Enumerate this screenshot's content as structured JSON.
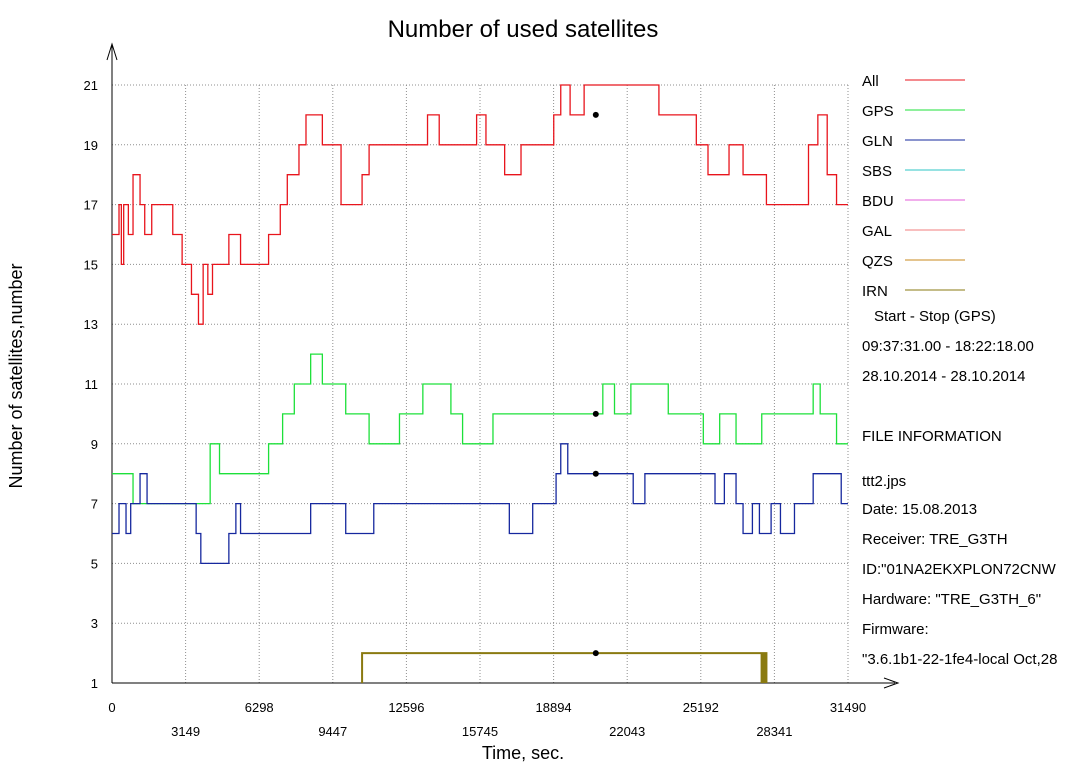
{
  "chart_data": {
    "type": "line",
    "title": "Number of used satellites",
    "xlabel": "Time, sec.",
    "ylabel": "Number of satellites,number",
    "xlim": [
      0,
      31490
    ],
    "ylim": [
      1,
      21
    ],
    "x_ticks_top_row": [
      "0",
      "6298",
      "12596",
      "18894",
      "25192",
      "31490"
    ],
    "x_ticks_bottom_row": [
      "3149",
      "9447",
      "15745",
      "22043",
      "28341"
    ],
    "y_ticks": [
      "1",
      "3",
      "5",
      "7",
      "9",
      "11",
      "13",
      "15",
      "17",
      "19",
      "21"
    ],
    "grid": true,
    "legend_position": "right",
    "series": [
      {
        "name": "All",
        "color": "#e8141c",
        "points": [
          [
            0,
            16
          ],
          [
            300,
            17
          ],
          [
            400,
            15
          ],
          [
            500,
            17
          ],
          [
            700,
            16
          ],
          [
            900,
            18
          ],
          [
            1200,
            17
          ],
          [
            1400,
            16
          ],
          [
            1700,
            17
          ],
          [
            2500,
            17
          ],
          [
            2600,
            16
          ],
          [
            3000,
            15
          ],
          [
            3400,
            14
          ],
          [
            3700,
            13
          ],
          [
            3900,
            15
          ],
          [
            4100,
            14
          ],
          [
            4300,
            15
          ],
          [
            4700,
            15
          ],
          [
            5000,
            16
          ],
          [
            5500,
            15
          ],
          [
            6000,
            15
          ],
          [
            6300,
            15
          ],
          [
            6700,
            16
          ],
          [
            7200,
            17
          ],
          [
            7500,
            18
          ],
          [
            8000,
            19
          ],
          [
            8300,
            20
          ],
          [
            8800,
            20
          ],
          [
            9000,
            19
          ],
          [
            9500,
            19
          ],
          [
            9800,
            17
          ],
          [
            10400,
            17
          ],
          [
            10700,
            18
          ],
          [
            11000,
            19
          ],
          [
            12000,
            19
          ],
          [
            13000,
            19
          ],
          [
            13500,
            20
          ],
          [
            14000,
            19
          ],
          [
            15000,
            19
          ],
          [
            15600,
            20
          ],
          [
            16000,
            19
          ],
          [
            16800,
            18
          ],
          [
            17200,
            18
          ],
          [
            17500,
            19
          ],
          [
            18500,
            19
          ],
          [
            18900,
            20
          ],
          [
            19200,
            21
          ],
          [
            19600,
            20
          ],
          [
            20200,
            21
          ],
          [
            21300,
            21
          ],
          [
            21700,
            21
          ],
          [
            22500,
            21
          ],
          [
            23400,
            20
          ],
          [
            24500,
            20
          ],
          [
            25000,
            19
          ],
          [
            25500,
            18
          ],
          [
            26400,
            19
          ],
          [
            27000,
            18
          ],
          [
            28000,
            17
          ],
          [
            29000,
            17
          ],
          [
            29800,
            19
          ],
          [
            30200,
            20
          ],
          [
            30600,
            18
          ],
          [
            31000,
            17
          ],
          [
            31490,
            17
          ]
        ]
      },
      {
        "name": "GPS",
        "color": "#1de03a",
        "points": [
          [
            0,
            8
          ],
          [
            600,
            8
          ],
          [
            900,
            7
          ],
          [
            1500,
            7
          ],
          [
            2500,
            7
          ],
          [
            3900,
            7
          ],
          [
            4200,
            9
          ],
          [
            4600,
            8
          ],
          [
            5600,
            8
          ],
          [
            6700,
            9
          ],
          [
            7300,
            10
          ],
          [
            7800,
            11
          ],
          [
            8300,
            11
          ],
          [
            8500,
            12
          ],
          [
            9000,
            11
          ],
          [
            9500,
            11
          ],
          [
            10000,
            10
          ],
          [
            10600,
            10
          ],
          [
            11000,
            9
          ],
          [
            12000,
            9
          ],
          [
            12300,
            10
          ],
          [
            12800,
            10
          ],
          [
            13300,
            11
          ],
          [
            14000,
            11
          ],
          [
            14500,
            10
          ],
          [
            15000,
            9
          ],
          [
            15800,
            9
          ],
          [
            16300,
            10
          ],
          [
            18800,
            10
          ],
          [
            19500,
            10
          ],
          [
            20700,
            10
          ],
          [
            21000,
            11
          ],
          [
            21500,
            10
          ],
          [
            22200,
            11
          ],
          [
            23000,
            11
          ],
          [
            23800,
            10
          ],
          [
            24800,
            10
          ],
          [
            25300,
            9
          ],
          [
            26000,
            10
          ],
          [
            26700,
            9
          ],
          [
            27400,
            9
          ],
          [
            27800,
            10
          ],
          [
            28500,
            10
          ],
          [
            29000,
            10
          ],
          [
            29500,
            10
          ],
          [
            30000,
            11
          ],
          [
            30300,
            10
          ],
          [
            30800,
            10
          ],
          [
            31000,
            9
          ],
          [
            31490,
            9
          ]
        ]
      },
      {
        "name": "GLN",
        "color": "#16289e",
        "points": [
          [
            0,
            6
          ],
          [
            300,
            7
          ],
          [
            600,
            6
          ],
          [
            800,
            7
          ],
          [
            1200,
            8
          ],
          [
            1500,
            7
          ],
          [
            2500,
            7
          ],
          [
            3500,
            7
          ],
          [
            3600,
            6
          ],
          [
            3800,
            5
          ],
          [
            4800,
            5
          ],
          [
            5000,
            6
          ],
          [
            5300,
            7
          ],
          [
            5500,
            6
          ],
          [
            8300,
            6
          ],
          [
            8500,
            7
          ],
          [
            9200,
            7
          ],
          [
            9500,
            7
          ],
          [
            10000,
            6
          ],
          [
            10800,
            6
          ],
          [
            11200,
            7
          ],
          [
            13000,
            7
          ],
          [
            14300,
            7
          ],
          [
            15300,
            7
          ],
          [
            16500,
            7
          ],
          [
            17000,
            6
          ],
          [
            17600,
            6
          ],
          [
            18000,
            7
          ],
          [
            18400,
            7
          ],
          [
            19000,
            8
          ],
          [
            19200,
            9
          ],
          [
            19500,
            8
          ],
          [
            20000,
            8
          ],
          [
            20700,
            8
          ],
          [
            21800,
            8
          ],
          [
            22300,
            7
          ],
          [
            22800,
            8
          ],
          [
            23400,
            8
          ],
          [
            24600,
            8
          ],
          [
            25300,
            8
          ],
          [
            25800,
            7
          ],
          [
            26200,
            8
          ],
          [
            26700,
            7
          ],
          [
            27000,
            6
          ],
          [
            27400,
            7
          ],
          [
            27700,
            6
          ],
          [
            28200,
            7
          ],
          [
            28600,
            6
          ],
          [
            29200,
            7
          ],
          [
            29800,
            7
          ],
          [
            30000,
            8
          ],
          [
            30900,
            8
          ],
          [
            31200,
            7
          ],
          [
            31490,
            7
          ]
        ]
      },
      {
        "name": "SBS",
        "color": "#2ec5c5",
        "points": []
      },
      {
        "name": "BDU",
        "color": "#e35cd9",
        "points": []
      },
      {
        "name": "GAL",
        "color": "#f07c7c",
        "points": [
          [
            10700,
            1
          ],
          [
            10700,
            2
          ],
          [
            28000,
            2
          ],
          [
            28000,
            1
          ]
        ]
      },
      {
        "name": "QZS",
        "color": "#c98a1e",
        "points": []
      },
      {
        "name": "IRN",
        "color": "#8a7a10",
        "points": [
          [
            10700,
            1
          ],
          [
            10700,
            2
          ],
          [
            28000,
            2
          ],
          [
            28000,
            1
          ]
        ]
      }
    ],
    "markers": [
      [
        20700,
        20
      ],
      [
        20700,
        10
      ],
      [
        20700,
        8
      ],
      [
        20700,
        2
      ]
    ]
  },
  "info_panel": {
    "range_header": "Start  -  Stop  (GPS)",
    "time_range": "09:37:31.00 - 18:22:18.00",
    "date_range": "28.10.2014 - 28.10.2014",
    "file_info_header": "FILE INFORMATION",
    "filename": "ttt2.jps",
    "date": "Date: 15.08.2013",
    "receiver": "Receiver: TRE_G3TH",
    "id": "ID:\"01NA2EKXPLON72CNW",
    "hardware": "Hardware: \"TRE_G3TH_6\"",
    "firmware": "Firmware:",
    "firmware_value": "\"3.6.1b1-22-1fe4-local Oct,28"
  }
}
